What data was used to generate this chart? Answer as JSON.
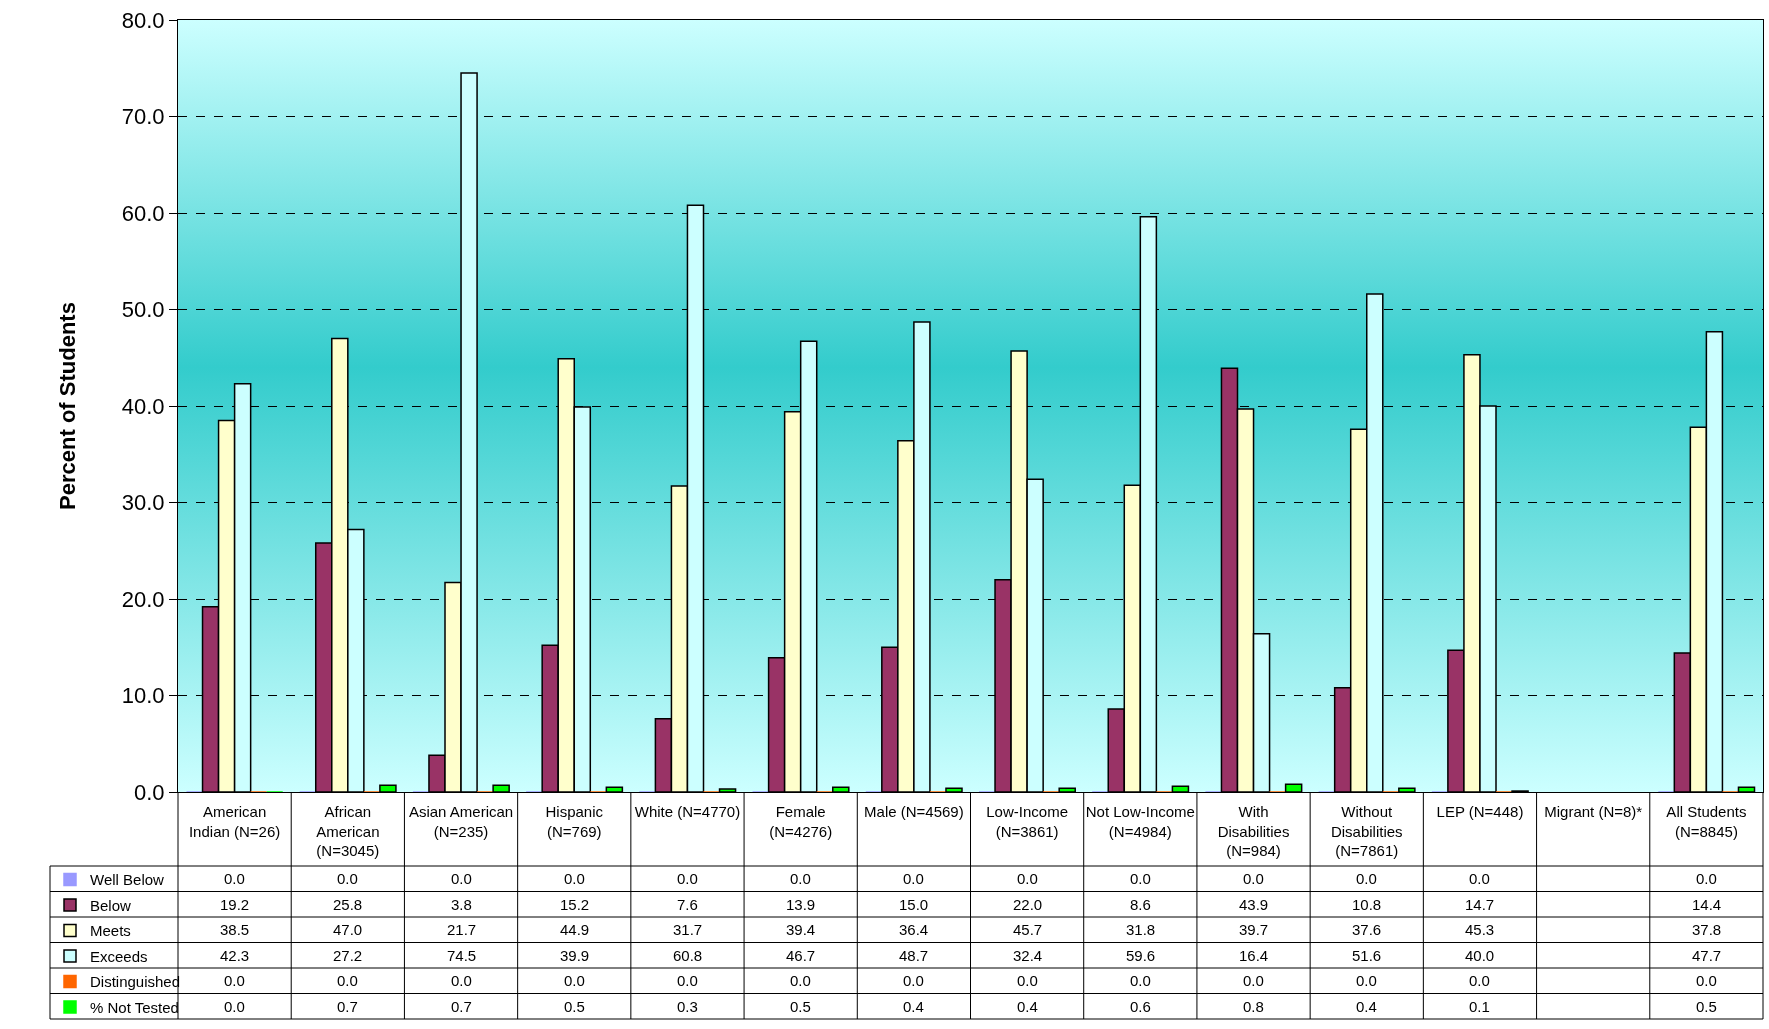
{
  "chart_data": {
    "type": "bar",
    "ylabel": "Percent of Students",
    "categories": [
      "American Indian (N=26)",
      "African American (N=3045)",
      "Asian American (N=235)",
      "Hispanic (N=769)",
      "White (N=4770)",
      "Female (N=4276)",
      "Male (N=4569)",
      "Low-Income (N=3861)",
      "Not Low-Income (N=4984)",
      "With Disabilities (N=984)",
      "Without Disabilities (N=7861)",
      "LEP (N=448)",
      "Migrant (N=8)*",
      "All Students (N=8845)"
    ],
    "series": [
      {
        "name": "Well Below",
        "color": "#9999ff",
        "values": [
          0.0,
          0.0,
          0.0,
          0.0,
          0.0,
          0.0,
          0.0,
          0.0,
          0.0,
          0.0,
          0.0,
          0.0,
          null,
          0.0
        ],
        "value_labels": [
          "0.0",
          "0.0",
          "0.0",
          "0.0",
          "0.0",
          "0.0",
          "0.0",
          "0.0",
          "0.0",
          "0.0",
          "0.0",
          "0.0",
          null,
          "0.0"
        ]
      },
      {
        "name": "Below",
        "color": "#993366",
        "values": [
          19.2,
          25.8,
          3.8,
          15.2,
          7.6,
          13.9,
          15.0,
          22.0,
          8.6,
          43.9,
          10.8,
          14.7,
          null,
          14.4
        ],
        "value_labels": [
          "19.2",
          "25.8",
          "3.8",
          "15.2",
          "7.6",
          "13.9",
          "15.0",
          "22.0",
          "8.6",
          "43.9",
          "10.8",
          "14.7",
          null,
          "14.4"
        ]
      },
      {
        "name": "Meets",
        "color": "#ffffcc",
        "values": [
          38.5,
          47.0,
          21.7,
          44.9,
          31.7,
          39.4,
          36.4,
          45.7,
          31.8,
          39.7,
          37.6,
          45.3,
          null,
          37.8
        ],
        "value_labels": [
          "38.5",
          "47.0",
          "21.7",
          "44.9",
          "31.7",
          "39.4",
          "36.4",
          "45.7",
          "31.8",
          "39.7",
          "37.6",
          "45.3",
          null,
          "37.8"
        ]
      },
      {
        "name": "Exceeds",
        "color": "#ccffff",
        "values": [
          42.3,
          27.2,
          74.5,
          39.9,
          60.8,
          46.7,
          48.7,
          32.4,
          59.6,
          16.4,
          51.6,
          40.0,
          null,
          47.7
        ],
        "value_labels": [
          "42.3",
          "27.2",
          "74.5",
          "39.9",
          "60.8",
          "46.7",
          "48.7",
          "32.4",
          "59.6",
          "16.4",
          "51.6",
          "40.0",
          null,
          "47.7"
        ]
      },
      {
        "name": "Distinguished",
        "color": "#ff6600",
        "values": [
          0.0,
          0.0,
          0.0,
          0.0,
          0.0,
          0.0,
          0.0,
          0.0,
          0.0,
          0.0,
          0.0,
          0.0,
          null,
          0.0
        ],
        "value_labels": [
          "0.0",
          "0.0",
          "0.0",
          "0.0",
          "0.0",
          "0.0",
          "0.0",
          "0.0",
          "0.0",
          "0.0",
          "0.0",
          "0.0",
          null,
          "0.0"
        ]
      },
      {
        "name": "% Not Tested",
        "color": "#00ff00",
        "values": [
          0.0,
          0.7,
          0.7,
          0.5,
          0.3,
          0.5,
          0.4,
          0.4,
          0.6,
          0.8,
          0.4,
          0.1,
          null,
          0.5
        ],
        "value_labels": [
          "0.0",
          "0.7",
          "0.7",
          "0.5",
          "0.3",
          "0.5",
          "0.4",
          "0.4",
          "0.6",
          "0.8",
          "0.4",
          "0.1",
          null,
          "0.5"
        ]
      }
    ],
    "ylim": [
      0,
      80
    ],
    "yticks": [
      {
        "value": 0,
        "label": "0.0"
      },
      {
        "value": 10,
        "label": "10.0"
      },
      {
        "value": 20,
        "label": "20.0"
      },
      {
        "value": 30,
        "label": "30.0"
      },
      {
        "value": 40,
        "label": "40.0"
      },
      {
        "value": 50,
        "label": "50.0"
      },
      {
        "value": 60,
        "label": "60.0"
      },
      {
        "value": 70,
        "label": "70.0"
      },
      {
        "value": 80,
        "label": "80.0"
      }
    ],
    "grid": "y",
    "legend": "bottom left"
  }
}
